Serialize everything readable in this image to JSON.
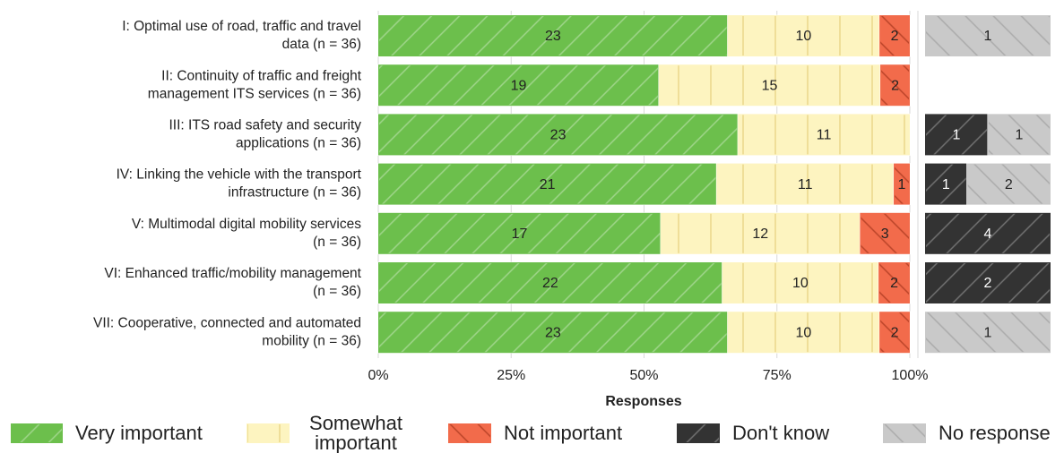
{
  "chart_data": {
    "type": "bar",
    "stacked": "percent",
    "orientation": "horizontal",
    "categories": [
      [
        "I: Optimal use of road, traffic and travel",
        "data (n = 36)"
      ],
      [
        "II: Continuity of traffic and freight",
        "management ITS services (n = 36)"
      ],
      [
        "III: ITS road safety and security",
        "applications (n = 36)"
      ],
      [
        "IV: Linking the vehicle with the transport",
        "infrastructure (n = 36)"
      ],
      [
        "V: Multimodal digital mobility services",
        "(n = 36)"
      ],
      [
        "VI: Enhanced traffic/mobility management",
        "(n = 36)"
      ],
      [
        "VII: Cooperative, connected and automated",
        "mobility (n = 36)"
      ]
    ],
    "series": [
      {
        "name": "Very important",
        "color": "#6cbf4c",
        "hatch": "/",
        "values": [
          23,
          19,
          23,
          21,
          17,
          22,
          23
        ]
      },
      {
        "name": "Somewhat important",
        "color": "#fdf4c0",
        "hatch": "|",
        "values": [
          10,
          15,
          11,
          11,
          12,
          10,
          10
        ]
      },
      {
        "name": "Not important",
        "color": "#f26b4b",
        "hatch": "\\",
        "values": [
          2,
          2,
          null,
          1,
          3,
          2,
          2
        ]
      },
      {
        "name": "Don't know",
        "color": "#333333",
        "hatch": "/",
        "axis": "x2",
        "values": [
          null,
          null,
          1,
          1,
          4,
          2,
          null
        ]
      },
      {
        "name": "No response",
        "color": "#c9c9c9",
        "hatch": "\\",
        "axis": "x2",
        "values": [
          1,
          null,
          1,
          2,
          null,
          null,
          1
        ]
      }
    ],
    "xlabel": "Responses",
    "xlim": [
      0,
      100
    ],
    "xticks": [
      {
        "value": 0,
        "label": "0%"
      },
      {
        "value": 25,
        "label": "25%"
      },
      {
        "value": 50,
        "label": "50%"
      },
      {
        "value": 75,
        "label": "75%"
      },
      {
        "value": 100,
        "label": "100%"
      }
    ],
    "grid": true,
    "legend": "bottom"
  }
}
